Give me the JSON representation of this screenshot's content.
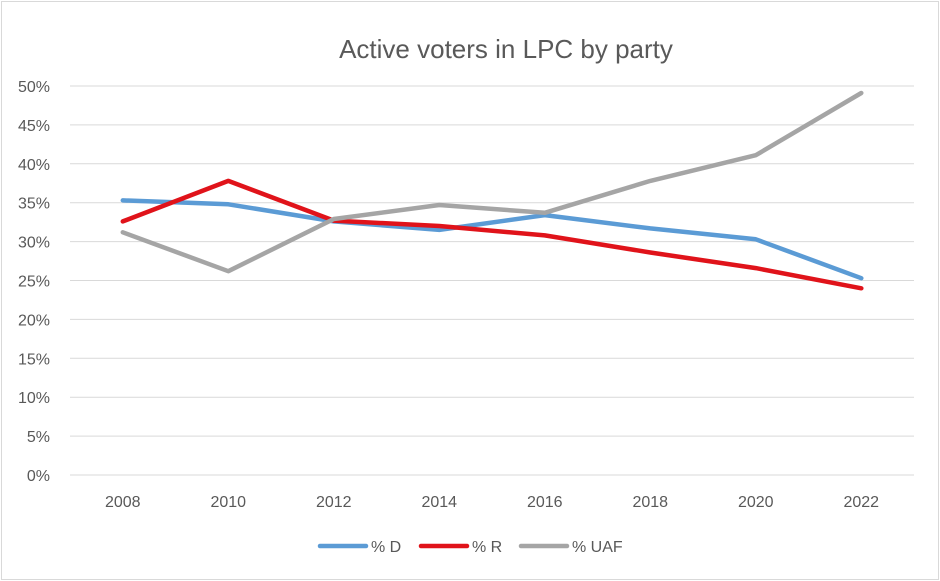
{
  "chart_data": {
    "type": "line",
    "title": "Active voters in LPC by party",
    "xlabel": "",
    "ylabel": "",
    "x": [
      "2008",
      "2010",
      "2012",
      "2014",
      "2016",
      "2018",
      "2020",
      "2022"
    ],
    "y_ticks": [
      "0%",
      "5%",
      "10%",
      "15%",
      "20%",
      "25%",
      "30%",
      "35%",
      "40%",
      "45%",
      "50%"
    ],
    "ylim": [
      0,
      50
    ],
    "y_unit": "%",
    "grid": "horizontal",
    "legend_position": "bottom",
    "series": [
      {
        "name": "% D",
        "color": "#5b9bd5",
        "values": [
          35.3,
          34.8,
          32.6,
          31.5,
          33.4,
          31.7,
          30.3,
          25.3
        ]
      },
      {
        "name": "% R",
        "color": "#e0131a",
        "values": [
          32.6,
          37.8,
          32.7,
          32.0,
          30.8,
          28.6,
          26.6,
          24.0
        ]
      },
      {
        "name": "% UAF",
        "color": "#a5a5a5",
        "values": [
          31.2,
          26.2,
          32.9,
          34.7,
          33.7,
          37.8,
          41.1,
          49.1
        ]
      }
    ]
  }
}
